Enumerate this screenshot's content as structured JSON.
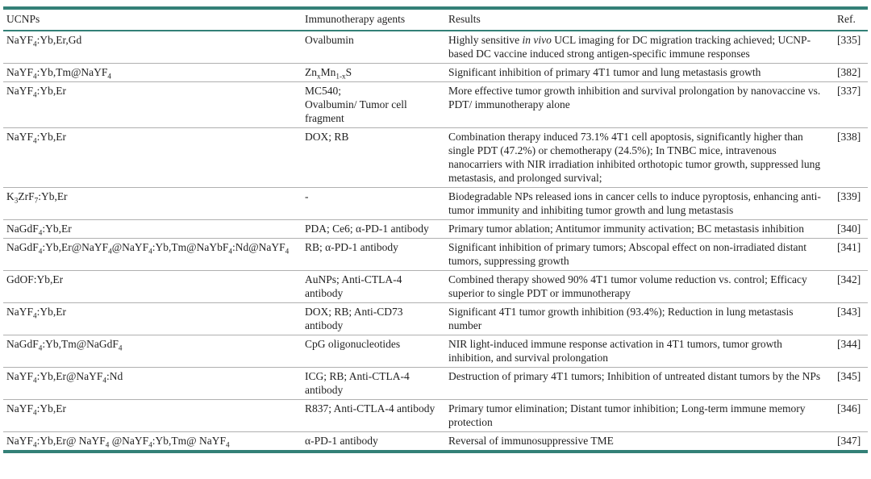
{
  "accent_color": "#338077",
  "divider_color": "#b0b0b0",
  "table": {
    "columns": [
      {
        "label": "UCNPs"
      },
      {
        "label": "Immunotherapy agents"
      },
      {
        "label": "Results"
      },
      {
        "label": "Ref."
      }
    ],
    "rows": [
      {
        "ucnp": "NaYF_{4}:Yb,Er,Gd",
        "agents": "Ovalbumin",
        "results": "Highly sensitive *in vivo* UCL imaging for DC migration tracking achieved; UCNP-based DC vaccine induced strong antigen-specific immune responses",
        "ref": "[335]"
      },
      {
        "ucnp": "NaYF_{4}:Yb,Tm@NaYF_{4}",
        "agents": "Zn_{x}Mn_{1-x}S",
        "results": "Significant inhibition of primary 4T1 tumor and lung metastasis growth",
        "ref": "[382]"
      },
      {
        "ucnp": "NaYF_{4}:Yb,Er",
        "agents": "MC540;\nOvalbumin/ Tumor cell fragment",
        "results": "More effective tumor growth inhibition and survival prolongation by nanovaccine vs. PDT/ immunotherapy alone",
        "ref": "[337]"
      },
      {
        "ucnp": "NaYF_{4}:Yb,Er",
        "agents": "DOX; RB",
        "results": "Combination therapy induced 73.1% 4T1 cell apoptosis, significantly higher than single PDT (47.2%) or chemotherapy (24.5%); In TNBC mice, intravenous nanocarriers with NIR irradiation inhibited orthotopic tumor growth, suppressed lung metastasis, and prolonged survival;",
        "ref": "[338]"
      },
      {
        "ucnp": "K_{3}ZrF_{7}:Yb,Er",
        "agents": "-",
        "results": "Biodegradable NPs released ions in cancer cells to induce pyroptosis, enhancing anti-tumor immunity and inhibiting tumor growth and lung metastasis",
        "ref": "[339]"
      },
      {
        "ucnp": "NaGdF_{4}:Yb,Er",
        "agents": "PDA; Ce6; α-PD-1 antibody",
        "results": "Primary tumor ablation; Antitumor immunity activation; BC metastasis inhibition",
        "ref": "[340]"
      },
      {
        "ucnp": "NaGdF_{4}:Yb,Er@NaYF_{4}@NaYF_{4}:Yb,Tm@NaYbF_{4}:Nd@NaYF_{4}",
        "agents": "RB; α-PD-1 antibody",
        "results": "Significant inhibition of primary tumors; Abscopal effect on non-irradiated distant tumors, suppressing growth",
        "ref": "[341]"
      },
      {
        "ucnp": "GdOF:Yb,Er",
        "agents": "AuNPs; Anti-CTLA-4 antibody",
        "results": "Combined therapy showed 90% 4T1 tumor volume reduction vs. control; Efficacy superior to single PDT or immunotherapy",
        "ref": "[342]"
      },
      {
        "ucnp": "NaYF_{4}:Yb,Er",
        "agents": "DOX; RB; Anti-CD73 antibody",
        "results": "Significant 4T1 tumor growth inhibition (93.4%); Reduction in lung metastasis number",
        "ref": "[343]"
      },
      {
        "ucnp": "NaGdF_{4}:Yb,Tm@NaGdF_{4}",
        "agents": "CpG oligonucleotides",
        "results": "NIR light-induced immune response activation in 4T1 tumors, tumor growth inhibition, and survival prolongation",
        "ref": "[344]"
      },
      {
        "ucnp": "NaYF_{4}:Yb,Er@NaYF_{4}:Nd",
        "agents": "ICG; RB; Anti-CTLA-4 antibody",
        "results": "Destruction of primary 4T1 tumors; Inhibition of untreated distant tumors by the NPs",
        "ref": "[345]"
      },
      {
        "ucnp": "NaYF_{4}:Yb,Er",
        "agents": "R837; Anti-CTLA-4 antibody",
        "results": "Primary tumor elimination; Distant tumor inhibition; Long-term immune memory protection",
        "ref": "[346]"
      },
      {
        "ucnp": "NaYF_{4}:Yb,Er@ NaYF_{4} @NaYF_{4}:Yb,Tm@ NaYF_{4}",
        "agents": "α-PD-1 antibody",
        "results": "Reversal of immunosuppressive TME",
        "ref": "[347]"
      }
    ]
  }
}
